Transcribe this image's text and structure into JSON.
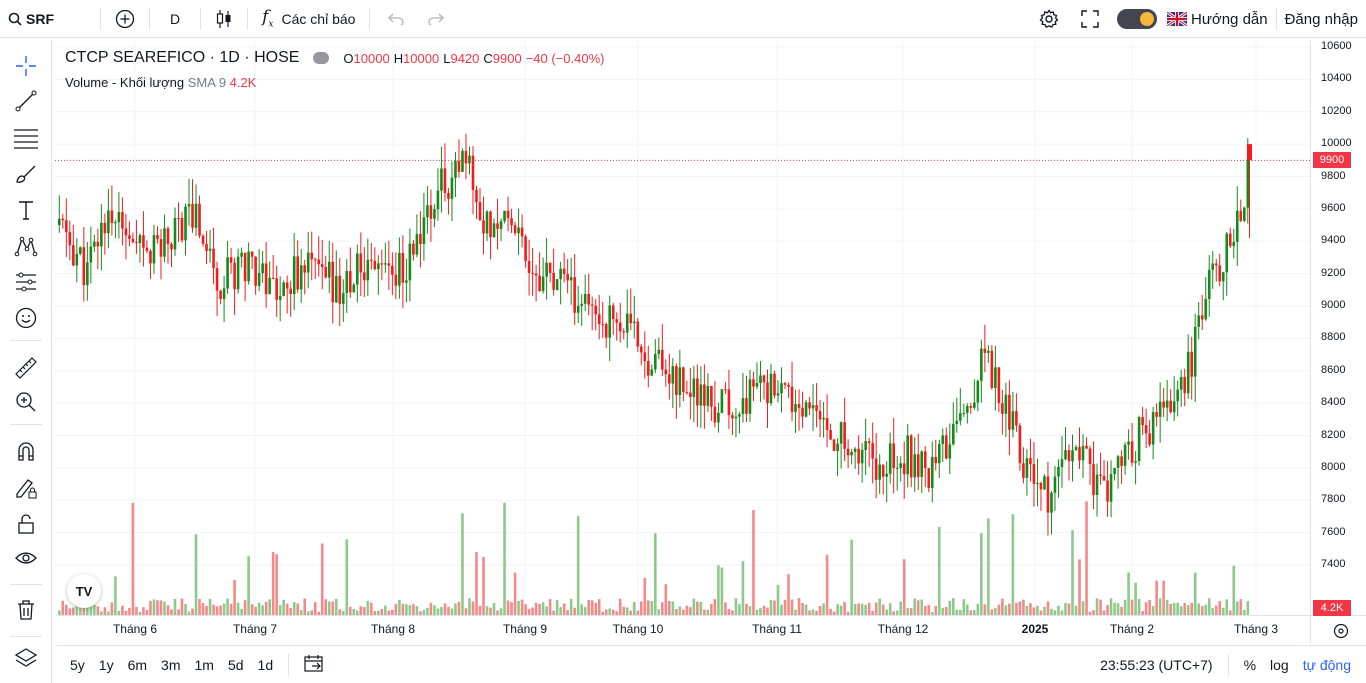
{
  "toolbar": {
    "symbol": "SRF",
    "interval": "D",
    "indicators_label": "Các chỉ báo",
    "guide_label": "Hướng dẫn",
    "login_label": "Đăng nhập"
  },
  "legend": {
    "title": "CTCP SEAREFICO · 1D · HOSE",
    "open_label": "O",
    "open": "10000",
    "high_label": "H",
    "high": "10000",
    "low_label": "L",
    "low": "9420",
    "close_label": "C",
    "close": "9900",
    "change": "−40 (−0.40%)",
    "volume_label": "Volume - Khối lượng",
    "volume_ma": "SMA 9",
    "volume_value": "4.2K"
  },
  "price_axis": {
    "labels": [
      "10600",
      "10400",
      "10200",
      "10000",
      "9800",
      "9600",
      "9400",
      "9200",
      "9000",
      "8800",
      "8600",
      "8400",
      "8200",
      "8000",
      "7800",
      "7600",
      "7400"
    ],
    "current_price": "9900",
    "current_volume": "4.2K"
  },
  "time_axis": {
    "labels": [
      "Tháng 6",
      "Tháng 7",
      "Tháng 8",
      "Tháng 9",
      "Tháng 10",
      "Tháng 11",
      "Tháng 12",
      "2025",
      "Tháng 2",
      "Tháng 3"
    ]
  },
  "bottom": {
    "ranges": [
      "5y",
      "1y",
      "6m",
      "3m",
      "1m",
      "5d",
      "1d"
    ],
    "clock": "23:55:23 (UTC+7)",
    "percent": "%",
    "log": "log",
    "auto": "tự động"
  },
  "colors": {
    "up": "#138a19",
    "down": "#f11d1d",
    "vol_up": "#8dc98b",
    "vol_down": "#f38a8a",
    "accent": "#2962ff"
  },
  "chart_data": {
    "type": "candlestick",
    "price_range": [
      7300,
      10700
    ],
    "pattern_summary": [
      {
        "period": "Tháng 6",
        "approx_range": [
          8700,
          10100
        ]
      },
      {
        "period": "Tháng 7",
        "approx_range": [
          8900,
          10000
        ]
      },
      {
        "period": "Tháng 8",
        "approx_range": [
          8800,
          9600
        ]
      },
      {
        "period": "Tháng 9",
        "approx_range": [
          9000,
          10300
        ]
      },
      {
        "period": "Tháng 10",
        "approx_range": [
          8600,
          9500
        ]
      },
      {
        "period": "Tháng 11",
        "approx_range": [
          8000,
          8700
        ]
      },
      {
        "period": "Tháng 12",
        "approx_range": [
          7800,
          8400
        ]
      },
      {
        "period": "2025",
        "approx_range": [
          7600,
          8850
        ]
      },
      {
        "period": "Tháng 2",
        "approx_range": [
          7800,
          8500
        ]
      },
      {
        "period": "Tháng 3",
        "approx_range": [
          8300,
          10000
        ]
      }
    ],
    "last_bar": {
      "open": 10000,
      "high": 10000,
      "low": 9420,
      "close": 9900,
      "volume": "4.2K"
    }
  }
}
